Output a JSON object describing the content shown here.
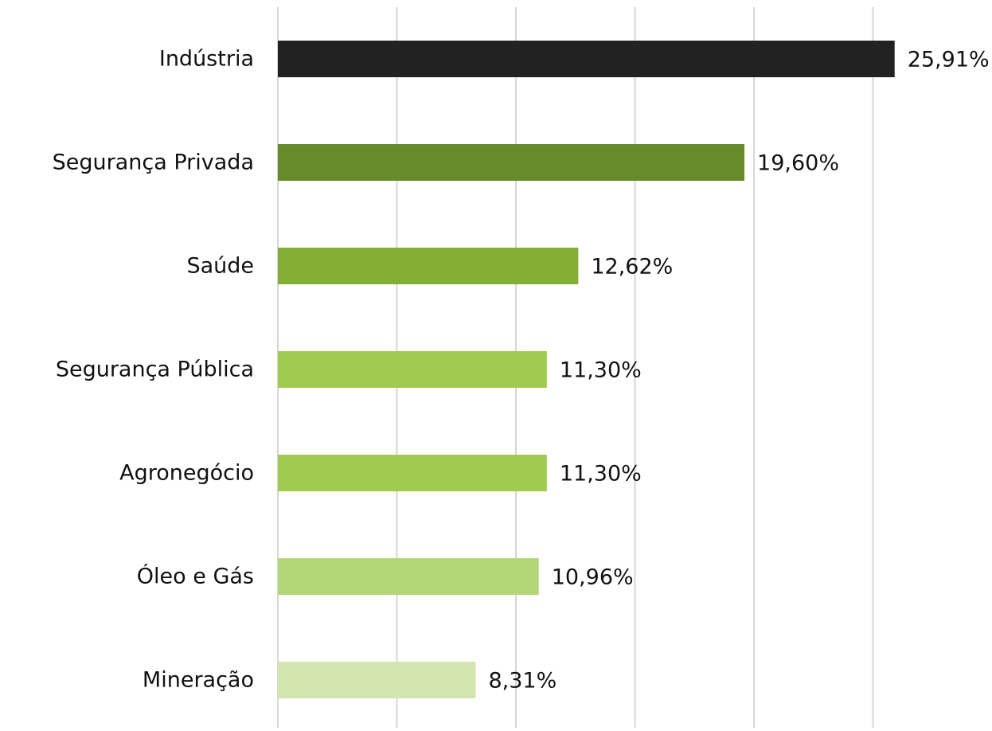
{
  "chart_data": {
    "type": "bar",
    "orientation": "horizontal",
    "categories": [
      "Indústria",
      "Segurança Privada",
      "Saúde",
      "Segurança Pública",
      "Agronegócio",
      "Óleo e Gás",
      "Mineração"
    ],
    "values": [
      25.91,
      19.6,
      12.62,
      11.3,
      11.3,
      10.96,
      8.31
    ],
    "value_labels": [
      "25,91%",
      "19,60%",
      "12,62%",
      "11,30%",
      "11,30%",
      "10,96%",
      "8,31%"
    ],
    "colors": [
      "#222222",
      "#678a2a",
      "#83ad35",
      "#a0cb50",
      "#a0cb50",
      "#b3d677",
      "#d2e6ad"
    ],
    "xlim": [
      0,
      30
    ],
    "xticks": [
      0,
      5,
      10,
      15,
      20,
      25
    ],
    "grid": true
  }
}
